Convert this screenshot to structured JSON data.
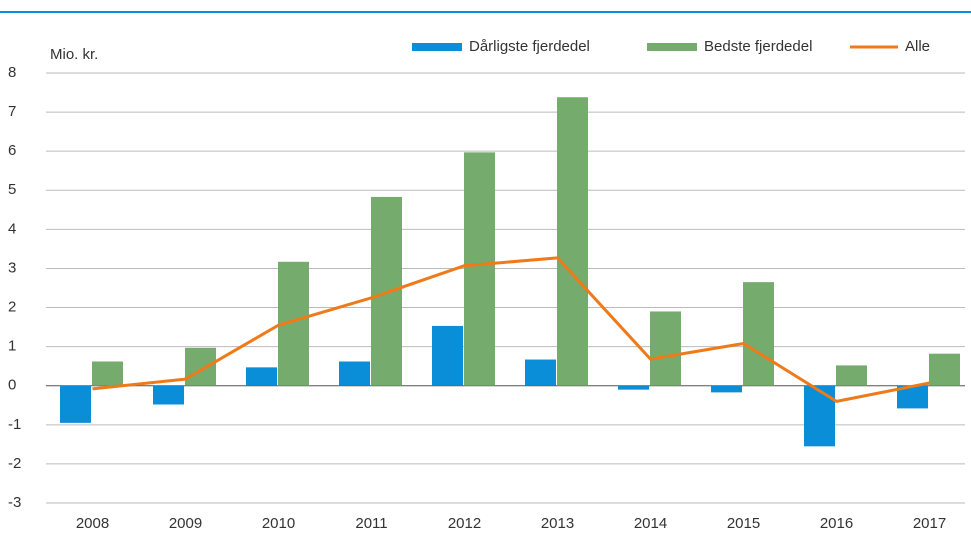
{
  "chart_data": {
    "type": "bar",
    "y_label": "Mio. kr.",
    "categories": [
      "2008",
      "2009",
      "2010",
      "2011",
      "2012",
      "2013",
      "2014",
      "2015",
      "2016",
      "2017"
    ],
    "series": [
      {
        "name": "Dårligste fjerdedel",
        "color": "#0a8ed8",
        "values": [
          -0.95,
          -0.48,
          0.47,
          0.62,
          1.53,
          0.67,
          -0.1,
          -0.17,
          -1.55,
          -0.58
        ]
      },
      {
        "name": "Bedste fjerdedel",
        "color": "#76ab6e",
        "values": [
          0.62,
          0.97,
          3.17,
          4.83,
          5.97,
          7.38,
          1.9,
          2.65,
          0.52,
          0.82
        ]
      },
      {
        "name": "Alle",
        "color": "#ee7a1a",
        "type": "line",
        "values": [
          -0.08,
          0.17,
          1.55,
          2.25,
          3.07,
          3.27,
          0.68,
          1.08,
          -0.4,
          0.07
        ]
      }
    ],
    "ylim": [
      -3,
      8
    ],
    "yticks": [
      -3,
      -2,
      -1,
      0,
      1,
      2,
      3,
      4,
      5,
      6,
      7,
      8
    ],
    "grid": true,
    "legend": "top"
  }
}
